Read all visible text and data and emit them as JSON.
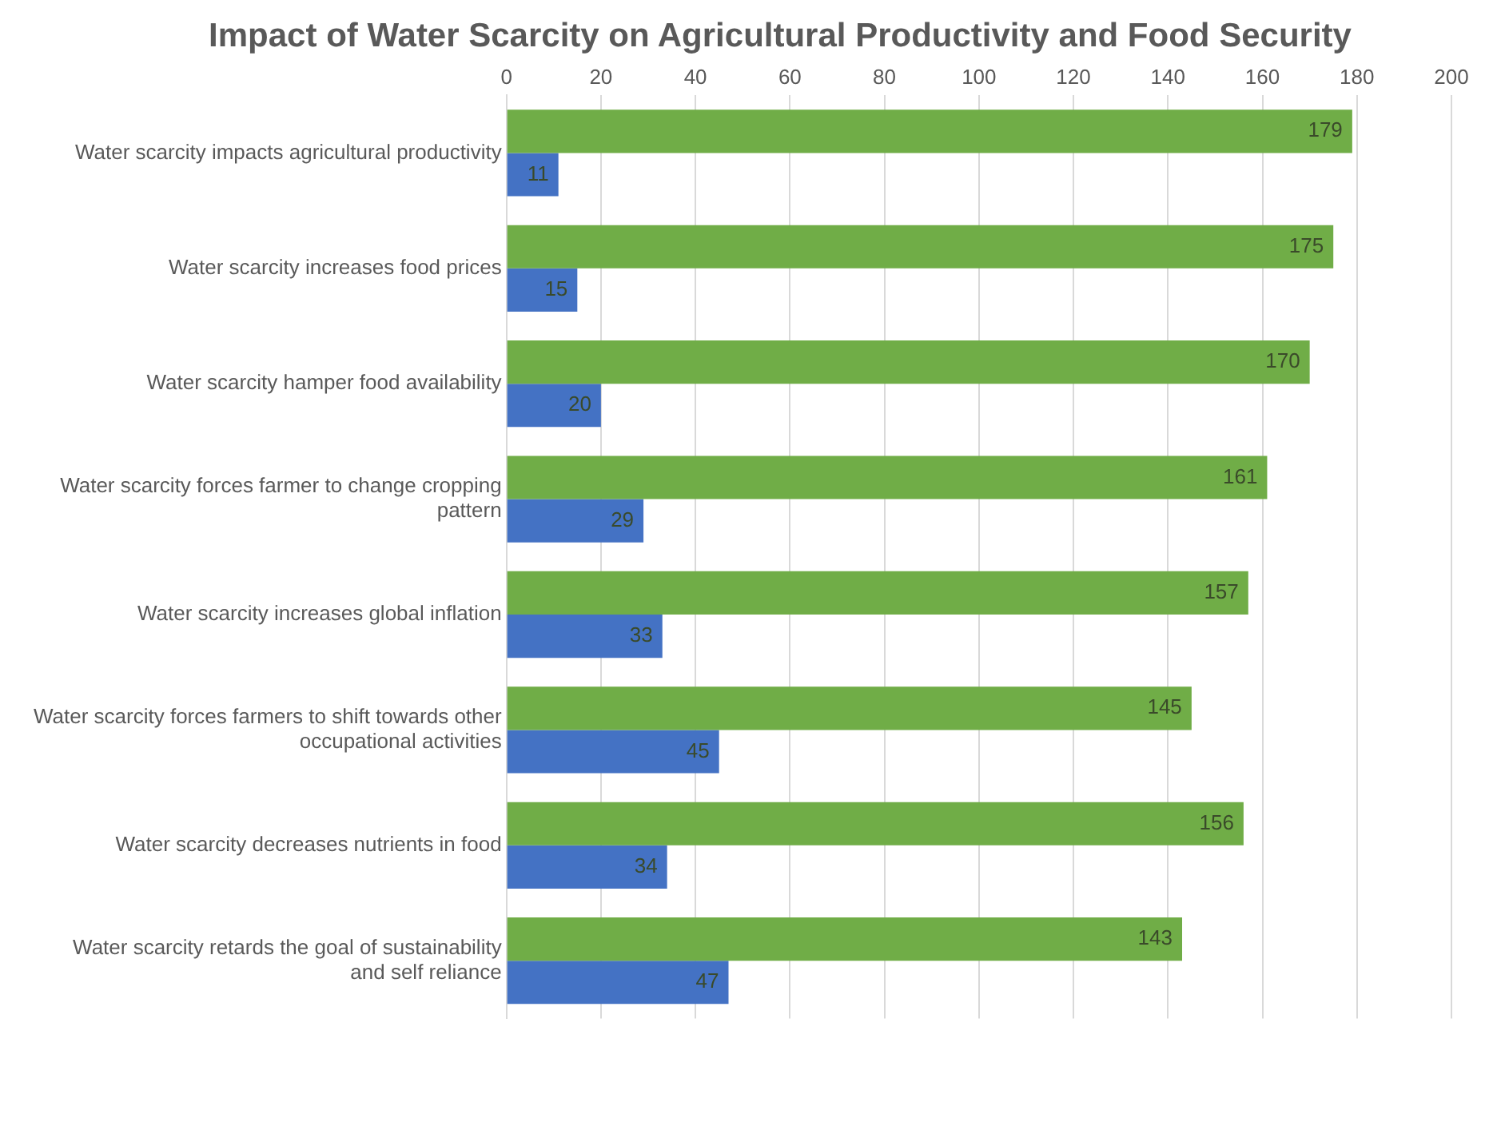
{
  "chart_data": {
    "type": "bar",
    "orientation": "horizontal",
    "title": "Impact of Water Scarcity on Agricultural Productivity and Food Security",
    "categories": [
      "Water scarcity impacts agricultural productivity",
      "Water scarcity increases food prices",
      "Water scarcity hamper food availability",
      "Water scarcity forces farmer to change cropping pattern",
      "Water scarcity increases global inflation",
      "Water scarcity forces farmers to shift towards other occupational activities",
      "Water scarcity decreases nutrients in food",
      "Water scarcity retards the goal of sustainability and self reliance"
    ],
    "series": [
      {
        "color": "#70ad47",
        "values": [
          179,
          175,
          170,
          161,
          157,
          145,
          156,
          143
        ]
      },
      {
        "color": "#4472c4",
        "values": [
          11,
          15,
          20,
          29,
          33,
          45,
          34,
          47
        ]
      }
    ],
    "xlim": [
      0,
      200
    ],
    "xticks": [
      0,
      20,
      40,
      60,
      80,
      100,
      120,
      140,
      160,
      180,
      200
    ],
    "grid": "x",
    "data_labels": true,
    "legend": false
  }
}
